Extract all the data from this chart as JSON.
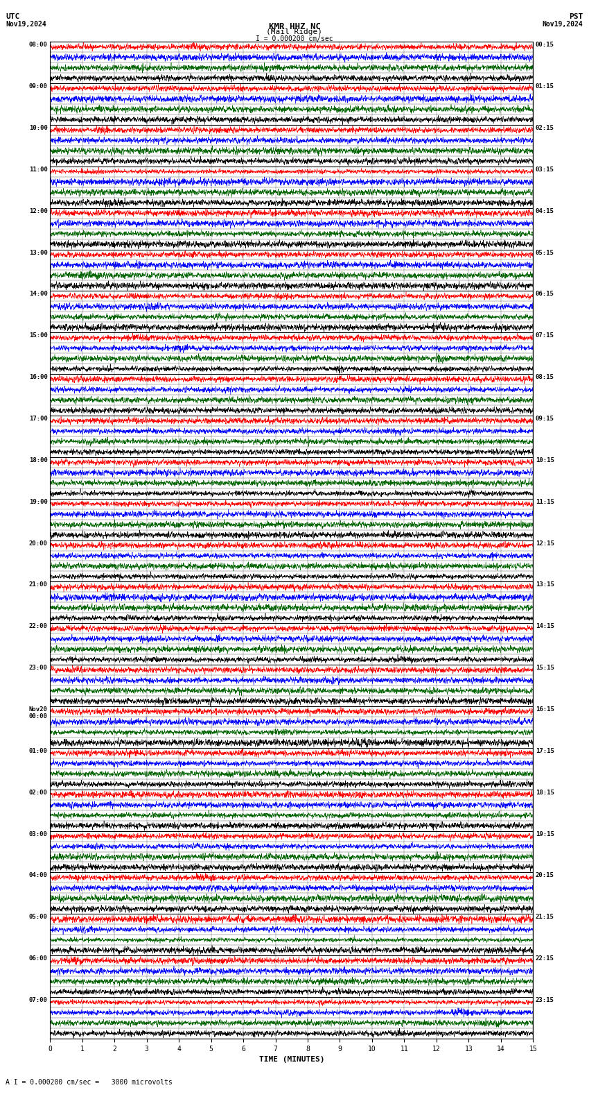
{
  "title_line1": "KMR HHZ NC",
  "title_line2": "(Mail Ridge)",
  "scale_label": "I = 0.000200 cm/sec",
  "left_timezone": "UTC",
  "left_date": "Nov19,2024",
  "right_timezone": "PST",
  "right_date": "Nov19,2024",
  "bottom_label": "TIME (MINUTES)",
  "bottom_note": "A I = 0.000200 cm/sec =   3000 microvolts",
  "left_times": [
    "08:00",
    "09:00",
    "10:00",
    "11:00",
    "12:00",
    "13:00",
    "14:00",
    "15:00",
    "16:00",
    "17:00",
    "18:00",
    "19:00",
    "20:00",
    "21:00",
    "22:00",
    "23:00",
    "Nov20\n00:00",
    "01:00",
    "02:00",
    "03:00",
    "04:00",
    "05:00",
    "06:00",
    "07:00"
  ],
  "right_times": [
    "00:15",
    "01:15",
    "02:15",
    "03:15",
    "04:15",
    "05:15",
    "06:15",
    "07:15",
    "08:15",
    "09:15",
    "10:15",
    "11:15",
    "12:15",
    "13:15",
    "14:15",
    "15:15",
    "16:15",
    "17:15",
    "18:15",
    "19:15",
    "20:15",
    "21:15",
    "22:15",
    "23:15"
  ],
  "n_hours": 24,
  "n_subrows": 4,
  "n_cols": 15,
  "background_color": "#ffffff",
  "trace_colors": [
    "#ff0000",
    "#0000ff",
    "#006400",
    "#000000"
  ],
  "fig_width": 8.5,
  "fig_height": 15.84,
  "dpi": 100,
  "x_tick_labels": [
    "0",
    "1",
    "2",
    "3",
    "4",
    "5",
    "6",
    "7",
    "8",
    "9",
    "10",
    "11",
    "12",
    "13",
    "14",
    "15"
  ]
}
